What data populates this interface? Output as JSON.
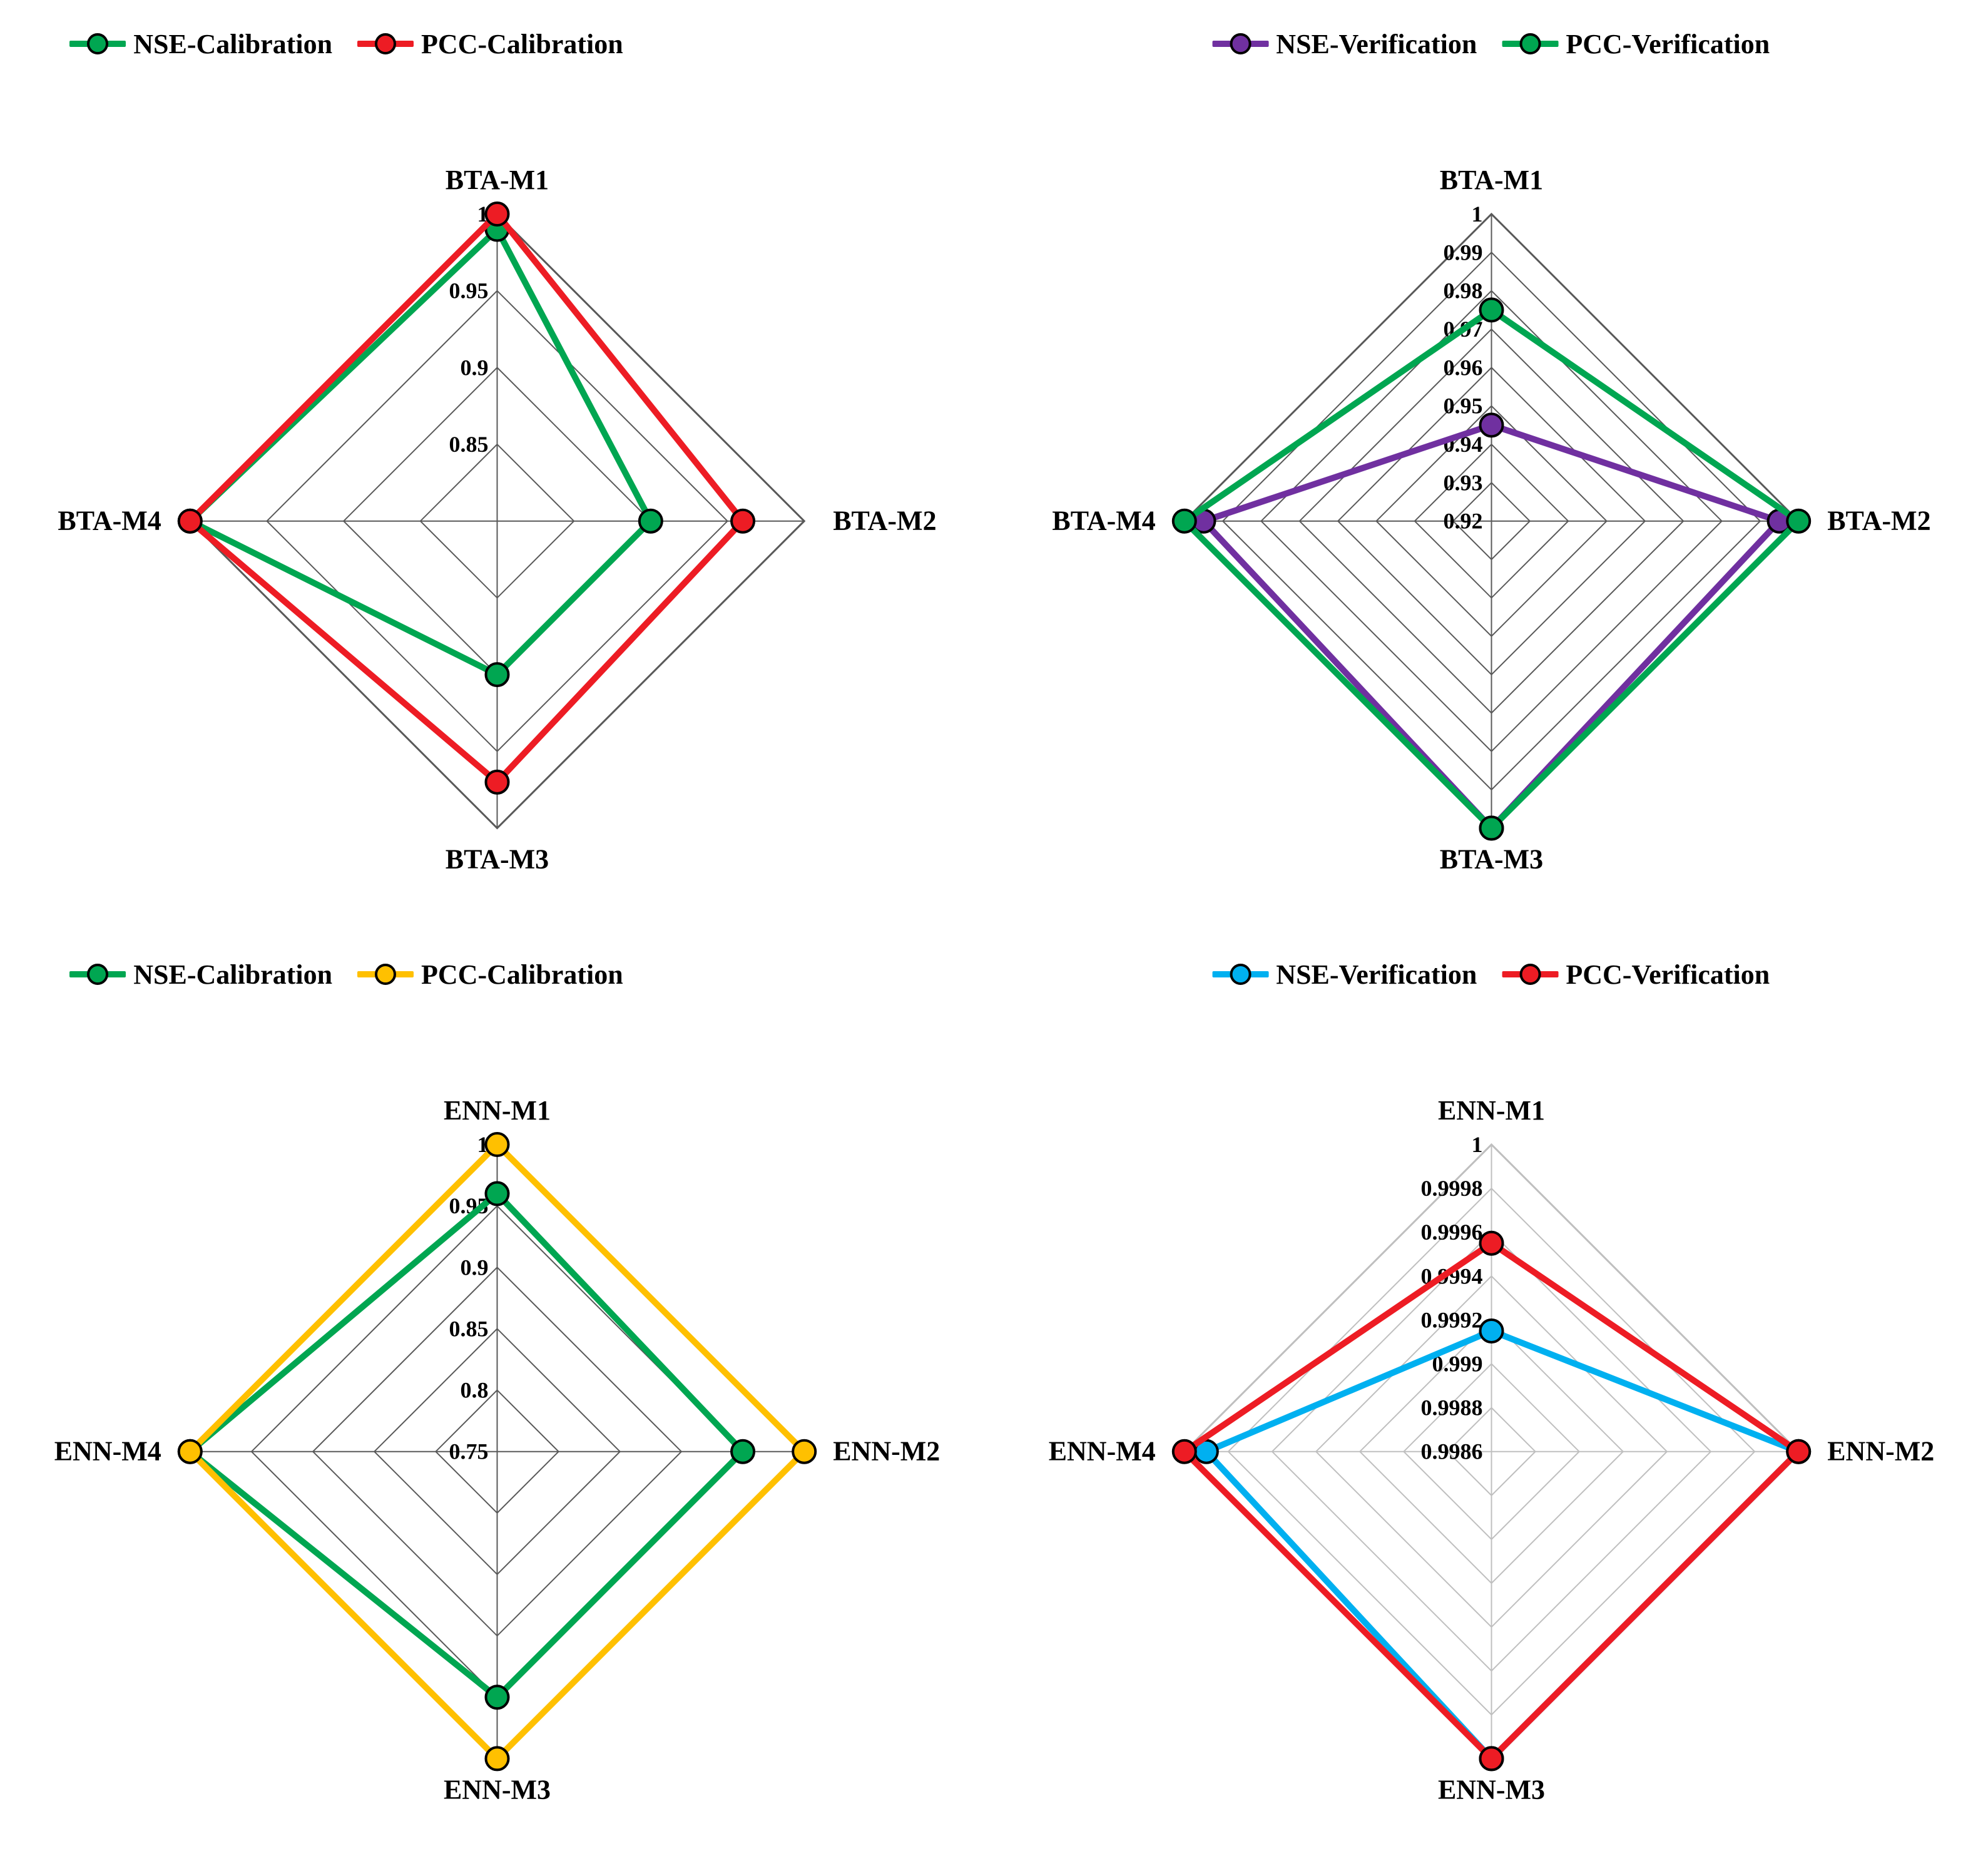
{
  "global": {
    "background_color": "#ffffff",
    "font_family": "Times New Roman",
    "axis_label_fontsize": 44,
    "tick_label_fontsize": 36,
    "legend_fontsize": 44,
    "line_width": 10,
    "marker_radius": 18,
    "marker_border_width": 4,
    "marker_border_color": "#000000",
    "grid_stroke_width": 2
  },
  "colors": {
    "green": "#00a651",
    "red": "#ed1c24",
    "purple": "#7030a0",
    "yellow": "#ffc000",
    "cyan": "#00b0f0",
    "grid_dark": "#595959",
    "grid_light": "#bfbfbf"
  },
  "panels": [
    {
      "id": "tl",
      "type": "radar",
      "grid_style": "dark",
      "axes": [
        "BTA-M1",
        "BTA-M2",
        "BTA-M3",
        "BTA-M4"
      ],
      "r_min": 0.8,
      "r_max": 1.0,
      "ticks": [
        0.85,
        0.9,
        0.95,
        1
      ],
      "tick_labels": [
        "0.85",
        "0.9",
        "0.95",
        "1"
      ],
      "legend_pos": "top-left",
      "series": [
        {
          "name": "NSE-Calibration",
          "color_key": "green",
          "values": [
            0.99,
            0.9,
            0.9,
            1.0
          ]
        },
        {
          "name": "PCC-Calibration",
          "color_key": "red",
          "values": [
            1.0,
            0.96,
            0.97,
            1.0
          ]
        }
      ]
    },
    {
      "id": "tr",
      "type": "radar",
      "grid_style": "dark",
      "axes": [
        "BTA-M1",
        "BTA-M2",
        "BTA-M3",
        "BTA-M4"
      ],
      "r_min": 0.92,
      "r_max": 1.0,
      "ticks": [
        0.92,
        0.93,
        0.94,
        0.95,
        0.96,
        0.97,
        0.98,
        0.99,
        1
      ],
      "tick_labels": [
        "0.92",
        "0.93",
        "0.94",
        "0.95",
        "0.96",
        "0.97",
        "0.98",
        "0.99",
        "1"
      ],
      "legend_pos": "top-center",
      "series": [
        {
          "name": "NSE-Verification",
          "color_key": "purple",
          "values": [
            0.945,
            0.995,
            1.0,
            0.995
          ]
        },
        {
          "name": "PCC-Verification",
          "color_key": "green",
          "values": [
            0.975,
            1.0,
            1.0,
            1.0
          ]
        }
      ]
    },
    {
      "id": "bl",
      "type": "radar",
      "grid_style": "dark",
      "axes": [
        "ENN-M1",
        "ENN-M2",
        "ENN-M3",
        "ENN-M4"
      ],
      "r_min": 0.75,
      "r_max": 1.0,
      "ticks": [
        0.75,
        0.8,
        0.85,
        0.9,
        0.95,
        1
      ],
      "tick_labels": [
        "0.75",
        "0.8",
        "0.85",
        "0.9",
        "0.95",
        "1"
      ],
      "legend_pos": "top-left",
      "series": [
        {
          "name": "NSE-Calibration",
          "color_key": "green",
          "values": [
            0.96,
            0.95,
            0.95,
            1.0
          ]
        },
        {
          "name": "PCC-Calibration",
          "color_key": "yellow",
          "values": [
            1.0,
            1.0,
            1.0,
            1.0
          ]
        }
      ]
    },
    {
      "id": "br",
      "type": "radar",
      "grid_style": "light",
      "axes": [
        "ENN-M1",
        "ENN-M2",
        "ENN-M3",
        "ENN-M4"
      ],
      "r_min": 0.9986,
      "r_max": 1.0,
      "ticks": [
        0.9986,
        0.9988,
        0.999,
        0.9992,
        0.9994,
        0.9996,
        0.9998,
        1
      ],
      "tick_labels": [
        "0.9986",
        "0.9988",
        "0.999",
        "0.9992",
        "0.9994",
        "0.9996",
        "0.9998",
        "1"
      ],
      "legend_pos": "top-center",
      "series": [
        {
          "name": "NSE-Verification",
          "color_key": "cyan",
          "values": [
            0.99915,
            1.0,
            1.0,
            0.9999
          ]
        },
        {
          "name": "PCC-Verification",
          "color_key": "red",
          "values": [
            0.99955,
            1.0,
            1.0,
            1.0
          ]
        }
      ]
    }
  ]
}
